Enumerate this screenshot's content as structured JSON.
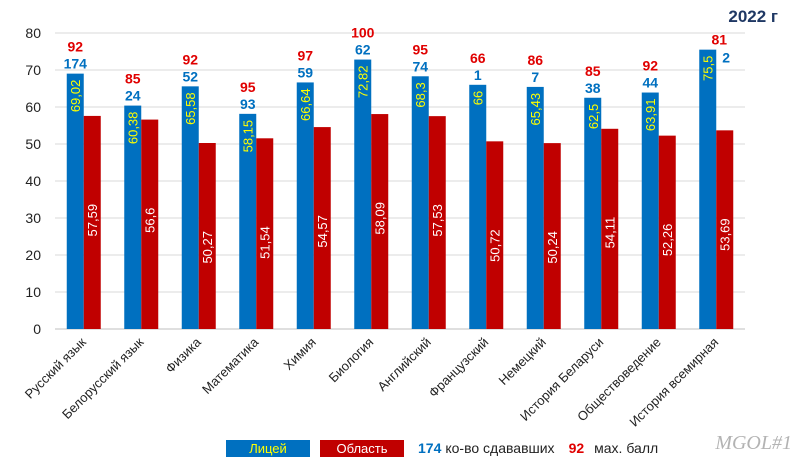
{
  "chart_data": {
    "type": "bar",
    "title": "2022 г",
    "ylim": [
      0,
      80
    ],
    "yticks": [
      0,
      10,
      20,
      30,
      40,
      50,
      60,
      70,
      80
    ],
    "categories": [
      "Русский язык",
      "Белорусский язык",
      "Физика",
      "Математика",
      "Химия",
      "Биология",
      "Английский",
      "Французский",
      "Немецкий",
      "История Беларуси",
      "Обществоведение",
      "История всемирная"
    ],
    "series": [
      {
        "name": "Лицей",
        "color": "#0070c0",
        "label_color": "#ffff00",
        "values": [
          69.02,
          60.38,
          65.58,
          58.15,
          66.64,
          72.82,
          68.3,
          66,
          65.43,
          62.5,
          63.91,
          75.5
        ],
        "labels": [
          "69,02",
          "60,38",
          "65,58",
          "58,15",
          "66,64",
          "72,82",
          "68,3",
          "66",
          "65,43",
          "62,5",
          "63,91",
          "75,5"
        ]
      },
      {
        "name": "Область",
        "color": "#c00000",
        "label_color": "#ffffff",
        "values": [
          57.59,
          56.6,
          50.27,
          51.54,
          54.57,
          58.09,
          57.53,
          50.72,
          50.24,
          54.11,
          52.26,
          53.69
        ],
        "labels": [
          "57,59",
          "56,6",
          "50,27",
          "51,54",
          "54,57",
          "58,09",
          "57,53",
          "50,72",
          "50,24",
          "54,11",
          "52,26",
          "53,69"
        ]
      }
    ],
    "takers_count": [
      "174",
      "24",
      "52",
      "93",
      "59",
      "62",
      "74",
      "1",
      "7",
      "38",
      "44",
      "2"
    ],
    "max_score": [
      "92",
      "85",
      "92",
      "95",
      "97",
      "100",
      "95",
      "66",
      "86",
      "85",
      "92",
      "81"
    ],
    "takers_color": "#0070c0",
    "max_color": "#e00000",
    "grid": true
  },
  "legend": {
    "lyceum": "Лицей",
    "region": "Область",
    "takers_num": "174",
    "takers_text": "ко-во сдававших",
    "max_num": "92",
    "max_text": "мах. балл"
  },
  "watermark": "MGOL#1"
}
